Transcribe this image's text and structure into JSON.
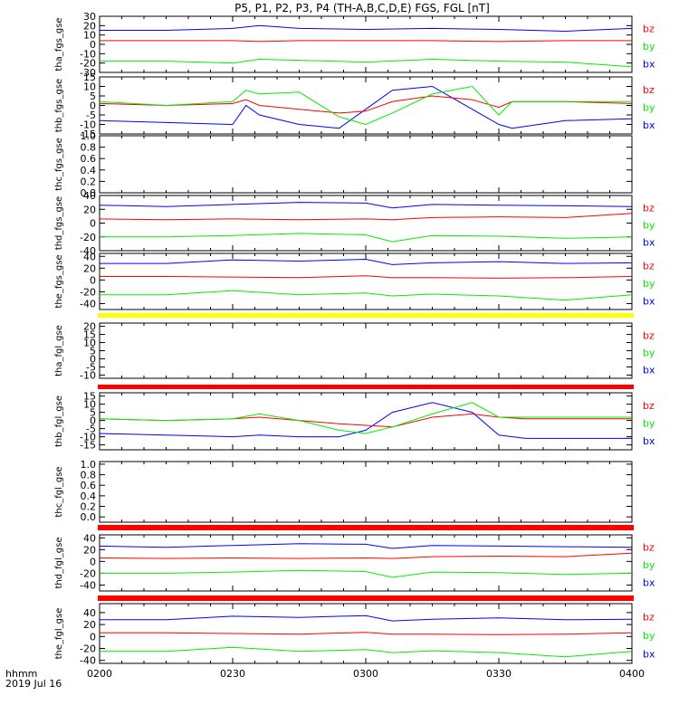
{
  "title": "P5, P1, P2, P3, P4 (TH-A,B,C,D,E) FGS, FGL [nT]",
  "x_axis": {
    "tick_labels": [
      "0200",
      "0230",
      "0300",
      "0330",
      "0400"
    ],
    "corner_label": "hhmm",
    "date_label": "2019 Jul 16"
  },
  "colors": {
    "bx": "#0000ff",
    "by": "#00ee00",
    "bz": "#ff0000",
    "bar_yellow": "#ffff00",
    "bar_red": "#ff0000",
    "axis": "#000000"
  },
  "chart_data": [
    {
      "type": "line",
      "ylabel": "tha_fgs_gse",
      "ylim": [
        -30,
        30
      ],
      "yticks": [
        "-30",
        "-20",
        "-10",
        "0",
        "10",
        "20",
        "30"
      ],
      "legend": [
        "bz",
        "by",
        "bx"
      ],
      "x_hours": [
        2.0,
        2.25,
        2.5,
        2.6,
        2.75,
        3.0,
        3.25,
        3.5,
        3.75,
        4.0
      ],
      "series": [
        {
          "name": "bx",
          "values": [
            15,
            15,
            17,
            20,
            17,
            16,
            17,
            16,
            14,
            17
          ]
        },
        {
          "name": "bz",
          "values": [
            4,
            4,
            4,
            3,
            4,
            4,
            4,
            3,
            4,
            4
          ]
        },
        {
          "name": "by",
          "values": [
            -18,
            -18,
            -20,
            -16,
            -17,
            -19,
            -16,
            -18,
            -19,
            -24
          ]
        }
      ]
    },
    {
      "type": "line",
      "ylabel": "thb_fgs_gse",
      "ylim": [
        -15,
        15
      ],
      "yticks": [
        "-15",
        "-10",
        "-5",
        "0",
        "5",
        "10",
        "15"
      ],
      "legend": [
        "bz",
        "by",
        "bx"
      ],
      "x_hours": [
        2.0,
        2.25,
        2.5,
        2.55,
        2.6,
        2.75,
        2.9,
        3.0,
        3.1,
        3.25,
        3.4,
        3.5,
        3.55,
        3.75,
        4.0
      ],
      "series": [
        {
          "name": "bx",
          "values": [
            -8,
            -9,
            -10,
            0,
            -5,
            -10,
            -12,
            -2,
            8,
            10,
            -2,
            -10,
            -12,
            -8,
            -7
          ]
        },
        {
          "name": "bz",
          "values": [
            1,
            0,
            1,
            3,
            0,
            -2,
            -4,
            -3,
            2,
            5,
            3,
            -1,
            2,
            2,
            1
          ]
        },
        {
          "name": "by",
          "values": [
            2,
            0,
            2,
            8,
            6,
            7,
            -6,
            -10,
            -4,
            6,
            10,
            -5,
            2,
            2,
            2
          ]
        }
      ]
    },
    {
      "type": "line",
      "ylabel": "thc_fgs_gse",
      "ylim": [
        0,
        1
      ],
      "yticks": [
        "0.0",
        "0.2",
        "0.4",
        "0.6",
        "0.8",
        "1.0"
      ],
      "legend": [],
      "x_hours": [],
      "series": []
    },
    {
      "type": "line",
      "ylabel": "thd_fgs_gse",
      "ylim": [
        -40,
        40
      ],
      "yticks": [
        "-40",
        "-20",
        "0",
        "20",
        "40"
      ],
      "legend": [
        "bz",
        "by",
        "bx"
      ],
      "x_hours": [
        2.0,
        2.25,
        2.5,
        2.75,
        3.0,
        3.1,
        3.25,
        3.5,
        3.75,
        4.0
      ],
      "series": [
        {
          "name": "bx",
          "values": [
            26,
            24,
            27,
            30,
            29,
            22,
            27,
            26,
            25,
            24
          ]
        },
        {
          "name": "bz",
          "values": [
            6,
            5,
            6,
            5,
            6,
            5,
            8,
            9,
            8,
            14
          ]
        },
        {
          "name": "by",
          "values": [
            -20,
            -20,
            -18,
            -15,
            -17,
            -27,
            -18,
            -19,
            -22,
            -20
          ]
        }
      ]
    },
    {
      "type": "line",
      "ylabel": "the_fgs_gse",
      "ylim": [
        -50,
        45
      ],
      "yticks": [
        "-40",
        "-20",
        "0",
        "20",
        "40"
      ],
      "legend": [
        "bz",
        "by",
        "bx"
      ],
      "x_hours": [
        2.0,
        2.25,
        2.5,
        2.75,
        3.0,
        3.1,
        3.25,
        3.5,
        3.75,
        4.0
      ],
      "series": [
        {
          "name": "bx",
          "values": [
            28,
            28,
            34,
            32,
            35,
            26,
            29,
            31,
            28,
            29
          ]
        },
        {
          "name": "bz",
          "values": [
            6,
            6,
            5,
            4,
            7,
            4,
            4,
            3,
            4,
            6
          ]
        },
        {
          "name": "by",
          "values": [
            -25,
            -25,
            -18,
            -25,
            -22,
            -27,
            -24,
            -27,
            -34,
            -25
          ]
        }
      ]
    },
    {
      "type": "line",
      "ylabel": "tha_fgl_gse",
      "ylim": [
        -12,
        22
      ],
      "yticks": [
        "-10",
        "-5",
        "0",
        "5",
        "10",
        "15",
        "20"
      ],
      "legend": [
        "bz",
        "by",
        "bx"
      ],
      "x_hours": [],
      "series": []
    },
    {
      "type": "line",
      "ylabel": "thb_fgl_gse",
      "ylim": [
        -18,
        17
      ],
      "yticks": [
        "-15",
        "-10",
        "-5",
        "0",
        "5",
        "10",
        "15"
      ],
      "legend": [
        "bz",
        "by",
        "bx"
      ],
      "x_hours": [
        2.0,
        2.25,
        2.5,
        2.6,
        2.75,
        2.9,
        3.0,
        3.1,
        3.25,
        3.4,
        3.5,
        3.6,
        3.75,
        4.0
      ],
      "series": [
        {
          "name": "bx",
          "values": [
            -8,
            -9,
            -10,
            -9,
            -10,
            -10,
            -6,
            5,
            11,
            5,
            -9,
            -11,
            -11,
            -11
          ]
        },
        {
          "name": "bz",
          "values": [
            1,
            0,
            1,
            2,
            0,
            -2,
            -3,
            -4,
            2,
            4,
            2,
            1,
            1,
            1
          ]
        },
        {
          "name": "by",
          "values": [
            1,
            0,
            1,
            4,
            0,
            -6,
            -8,
            -4,
            4,
            11,
            2,
            2,
            2,
            2
          ]
        }
      ]
    },
    {
      "type": "line",
      "ylabel": "thc_fgl_gse",
      "ylim": [
        -0.1,
        1.05
      ],
      "yticks": [
        "0.0",
        "0.2",
        "0.4",
        "0.6",
        "0.8",
        "1.0"
      ],
      "legend": [],
      "x_hours": [],
      "series": []
    },
    {
      "type": "line",
      "ylabel": "thd_fgl_gse",
      "ylim": [
        -50,
        45
      ],
      "yticks": [
        "-40",
        "-20",
        "0",
        "20",
        "40"
      ],
      "legend": [
        "bz",
        "by",
        "bx"
      ],
      "x_hours": [
        2.0,
        2.25,
        2.5,
        2.75,
        3.0,
        3.1,
        3.25,
        3.5,
        3.75,
        4.0
      ],
      "series": [
        {
          "name": "bx",
          "values": [
            26,
            24,
            27,
            30,
            29,
            22,
            27,
            26,
            25,
            24
          ]
        },
        {
          "name": "bz",
          "values": [
            6,
            5,
            6,
            5,
            6,
            5,
            8,
            9,
            8,
            14
          ]
        },
        {
          "name": "by",
          "values": [
            -20,
            -20,
            -18,
            -15,
            -17,
            -27,
            -18,
            -19,
            -22,
            -20
          ]
        }
      ]
    },
    {
      "type": "line",
      "ylabel": "the_fgl_gse",
      "ylim": [
        -45,
        55
      ],
      "yticks": [
        "-40",
        "-20",
        "0",
        "20",
        "40"
      ],
      "legend": [
        "bz",
        "by",
        "bx"
      ],
      "x_hours": [
        2.0,
        2.25,
        2.5,
        2.75,
        3.0,
        3.1,
        3.25,
        3.5,
        3.75,
        4.0
      ],
      "series": [
        {
          "name": "bx",
          "values": [
            28,
            28,
            34,
            32,
            35,
            26,
            29,
            31,
            28,
            29
          ]
        },
        {
          "name": "bz",
          "values": [
            6,
            6,
            5,
            4,
            7,
            4,
            4,
            3,
            4,
            6
          ]
        },
        {
          "name": "by",
          "values": [
            -25,
            -25,
            -18,
            -25,
            -22,
            -27,
            -24,
            -27,
            -34,
            -25
          ]
        }
      ]
    }
  ]
}
